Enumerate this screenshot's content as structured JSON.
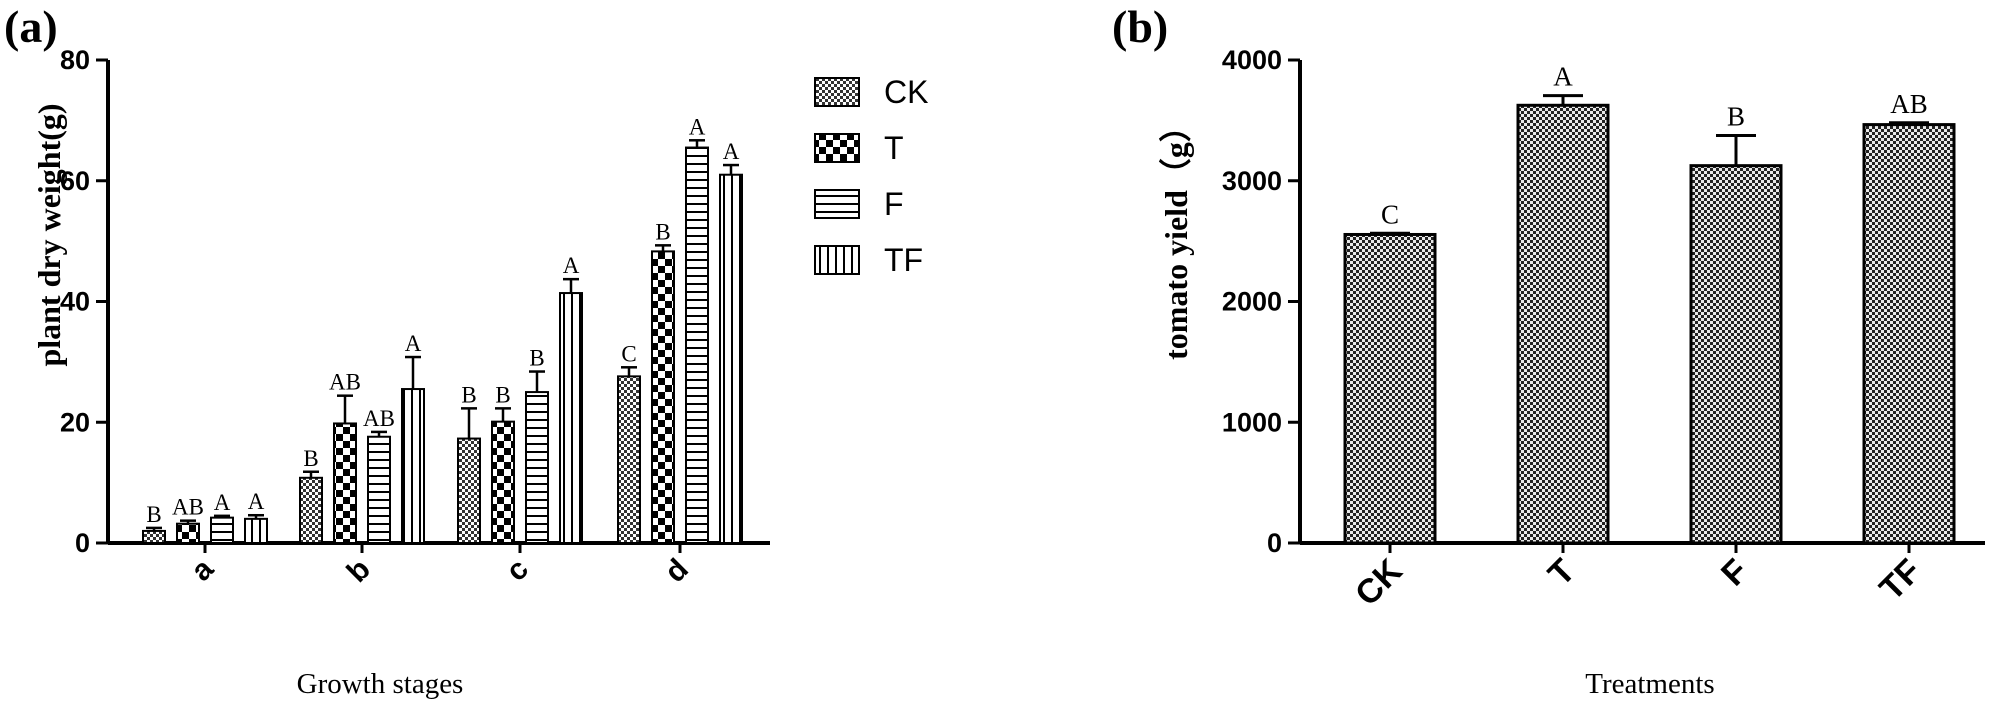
{
  "panels": {
    "a": {
      "label": "(a)"
    },
    "b": {
      "label": "(b)"
    }
  },
  "chart_data": [
    {
      "type": "bar",
      "panel": "(a)",
      "title": "",
      "xlabel": "Growth stages",
      "ylabel": "plant dry weight(g)",
      "ylim": [
        0,
        80
      ],
      "yticks": [
        0,
        20,
        40,
        60,
        80
      ],
      "categories": [
        "a",
        "b",
        "c",
        "d"
      ],
      "legend_position": "top-right",
      "series": [
        {
          "name": "CK",
          "pattern": "fine-check",
          "values": [
            2.0,
            10.8,
            17.3,
            27.6
          ],
          "errors": [
            0.5,
            1.0,
            5.0,
            1.5
          ],
          "letters": [
            "B",
            "B",
            "B",
            "C"
          ]
        },
        {
          "name": "T",
          "pattern": "coarse-check",
          "values": [
            3.2,
            19.8,
            20.1,
            48.3
          ],
          "errors": [
            0.5,
            4.6,
            2.2,
            1.0
          ],
          "letters": [
            "AB",
            "AB",
            "B",
            "B"
          ]
        },
        {
          "name": "F",
          "pattern": "horizontal-lines",
          "values": [
            4.2,
            17.6,
            25.0,
            65.5
          ],
          "errors": [
            0.3,
            0.8,
            3.4,
            1.2
          ],
          "letters": [
            "A",
            "AB",
            "B",
            "A"
          ]
        },
        {
          "name": "TF",
          "pattern": "vertical-lines",
          "values": [
            4.0,
            25.5,
            41.4,
            61.0
          ],
          "errors": [
            0.6,
            5.3,
            2.3,
            1.6
          ],
          "letters": [
            "A",
            "A",
            "A",
            "A"
          ]
        }
      ]
    },
    {
      "type": "bar",
      "panel": "(b)",
      "title": "",
      "xlabel": "Treatments",
      "ylabel": "tomato yield（g）",
      "ylim": [
        0,
        4000
      ],
      "yticks": [
        0,
        1000,
        2000,
        3000,
        4000
      ],
      "categories": [
        "CK",
        "T",
        "F",
        "TF"
      ],
      "values": [
        2555,
        3625,
        3125,
        3465
      ],
      "errors": [
        10,
        80,
        250,
        15
      ],
      "letters": [
        "C",
        "A",
        "B",
        "AB"
      ],
      "pattern": "check"
    }
  ],
  "colors": {
    "ink": "#000000",
    "background": "#ffffff"
  }
}
